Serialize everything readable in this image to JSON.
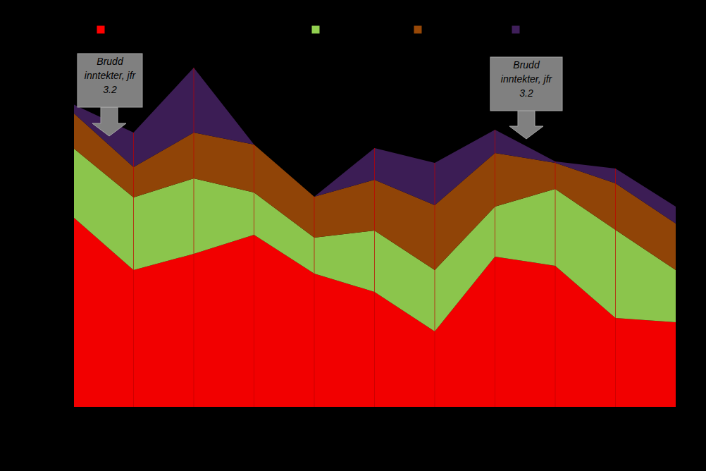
{
  "chart_data": {
    "type": "area",
    "stacked": true,
    "tick_labels": false,
    "categories": [
      null,
      null,
      null,
      null,
      null,
      null,
      null,
      null,
      null,
      null,
      null
    ],
    "series": [
      {
        "color": "#ff0000",
        "values": [
          269,
          194,
          217,
          244,
          189,
          163,
          107,
          213,
          200,
          126,
          120
        ]
      },
      {
        "color": "#92d050",
        "values": [
          98,
          103,
          107,
          60,
          51,
          87,
          87,
          71,
          109,
          125,
          74
        ]
      },
      {
        "color": "#984807",
        "values": [
          50,
          43,
          65,
          68,
          58,
          72,
          92,
          76,
          37,
          66,
          66
        ]
      },
      {
        "color": "#3f1f5a",
        "values": [
          12,
          49,
          92,
          0,
          0,
          45,
          60,
          33,
          2,
          21,
          24
        ]
      }
    ],
    "ylim": [
      0,
      500
    ],
    "annotations": [
      {
        "text": "Brudd inntekter, jfr 3.2"
      },
      {
        "text": "Brudd inntekter, jfr 3.2"
      }
    ]
  }
}
